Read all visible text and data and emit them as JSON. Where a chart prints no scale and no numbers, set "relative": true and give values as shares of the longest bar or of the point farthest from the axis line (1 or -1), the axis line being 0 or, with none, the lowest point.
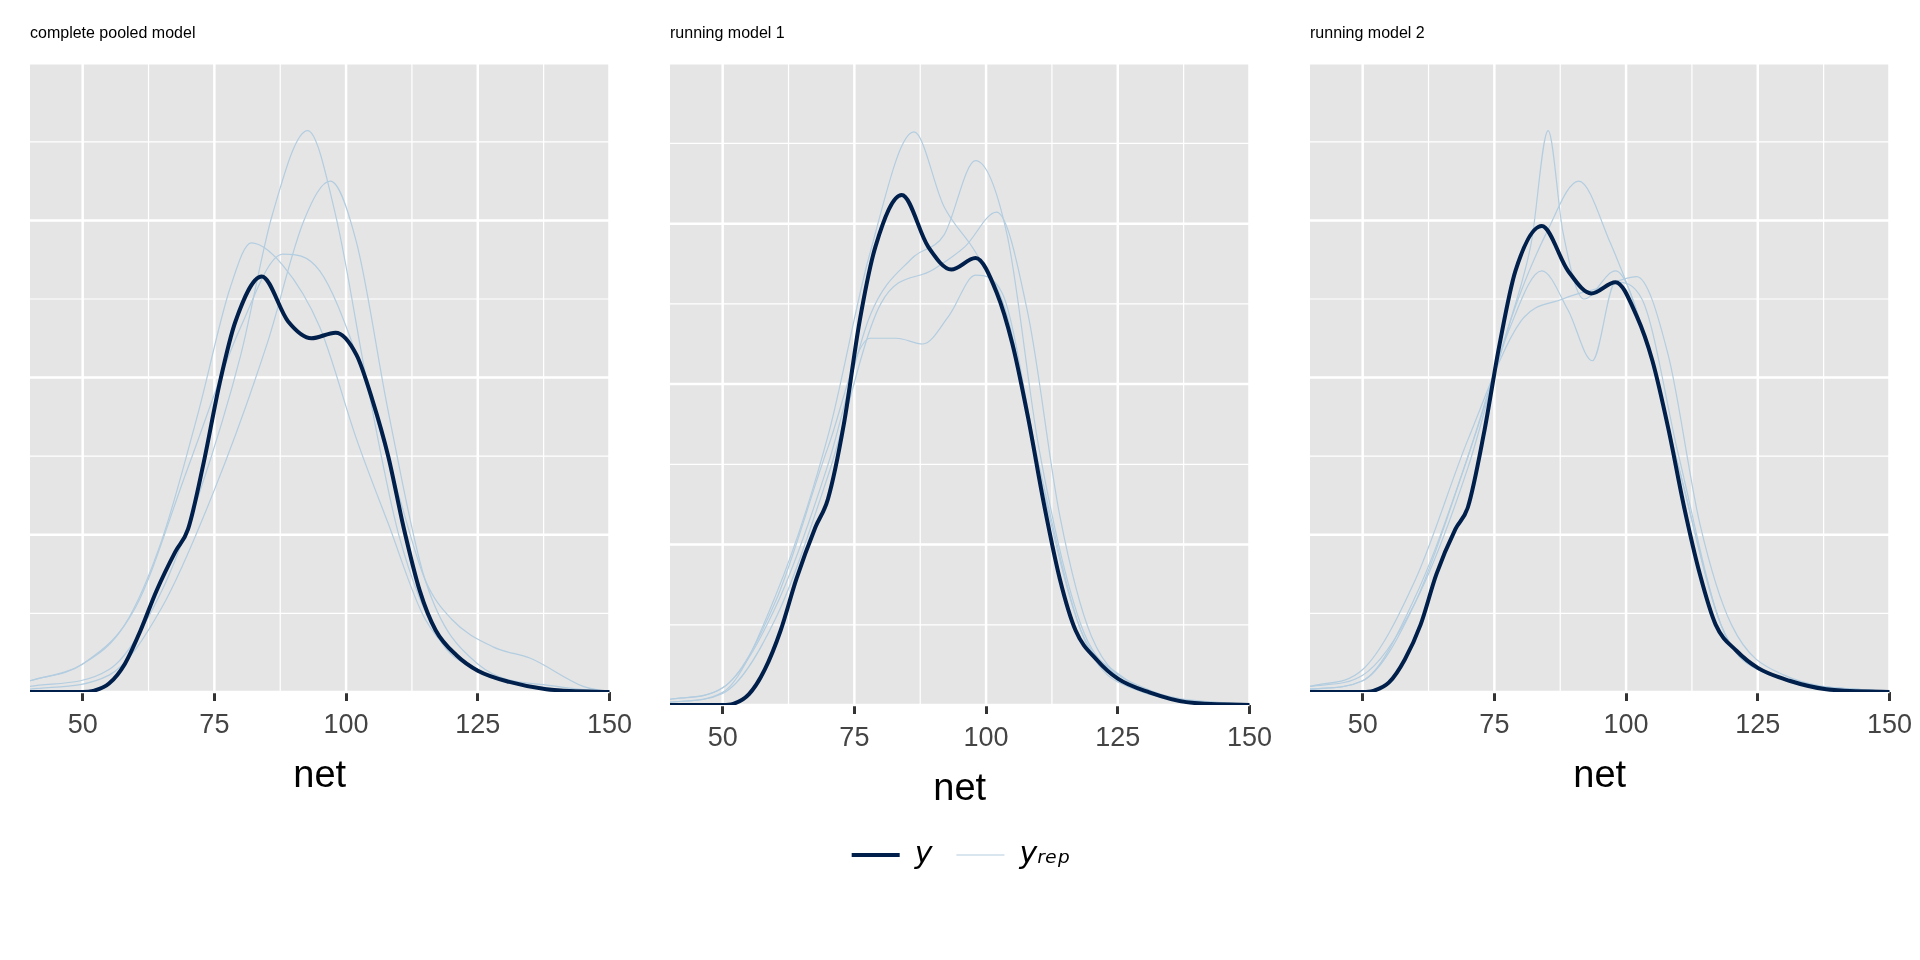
{
  "chart_data": [
    {
      "type": "line",
      "title": "complete pooled model",
      "xlabel": "net",
      "xlim": [
        40,
        150
      ],
      "xticks": [
        50,
        75,
        100,
        125,
        150
      ],
      "relative": true,
      "grid": true,
      "marker": "none",
      "line_style": "solid",
      "tick_labels": "x",
      "series": [
        {
          "color": "#011f4b",
          "x": [
            40,
            50,
            52,
            55,
            58,
            61,
            64,
            67.6,
            70,
            73,
            76,
            79,
            84,
            89,
            93.4,
            98,
            102,
            105,
            108,
            111,
            114,
            117,
            121,
            125,
            131,
            138,
            150
          ],
          "values": [
            0,
            0,
            0.002,
            0.015,
            0.05,
            0.11,
            0.18,
            0.25,
            0.29,
            0.41,
            0.55,
            0.66,
            0.74,
            0.66,
            0.63,
            0.64,
            0.6,
            0.52,
            0.42,
            0.29,
            0.18,
            0.11,
            0.065,
            0.038,
            0.018,
            0.005,
            0
          ]
        },
        {
          "color": "#b3cde0",
          "x": [
            40,
            55,
            65,
            72,
            80,
            86,
            92.7,
            98,
            104,
            110,
            118,
            125,
            135,
            150
          ],
          "values": [
            0.01,
            0.04,
            0.18,
            0.35,
            0.6,
            0.85,
            1,
            0.85,
            0.55,
            0.28,
            0.09,
            0.04,
            0.01,
            0
          ]
        },
        {
          "color": "#b3cde0",
          "x": [
            40,
            50,
            60,
            70,
            80,
            88,
            95,
            102,
            110,
            115,
            120,
            128,
            135,
            145,
            150
          ],
          "values": [
            0.02,
            0.05,
            0.15,
            0.4,
            0.65,
            0.78,
            0.75,
            0.6,
            0.35,
            0.2,
            0.13,
            0.08,
            0.06,
            0.01,
            0
          ]
        },
        {
          "color": "#b3cde0",
          "x": [
            40,
            50,
            58,
            65,
            72,
            78,
            82,
            88,
            95,
            102,
            108,
            115,
            125,
            140,
            150
          ],
          "values": [
            0.02,
            0.05,
            0.12,
            0.27,
            0.5,
            0.72,
            0.8,
            0.76,
            0.65,
            0.45,
            0.3,
            0.13,
            0.04,
            0.005,
            0
          ]
        },
        {
          "color": "#b3cde0",
          "x": [
            40,
            55,
            65,
            75,
            85,
            92,
            97,
            102,
            108,
            115,
            125,
            140,
            150
          ],
          "values": [
            0.005,
            0.03,
            0.15,
            0.36,
            0.62,
            0.84,
            0.91,
            0.8,
            0.5,
            0.2,
            0.05,
            0.01,
            0
          ]
        }
      ]
    },
    {
      "type": "line",
      "title": "running model 1",
      "xlabel": "net",
      "xlim": [
        40,
        150
      ],
      "xticks": [
        50,
        75,
        100,
        125,
        150
      ],
      "relative": true,
      "grid": true,
      "marker": "none",
      "line_style": "solid",
      "tick_labels": "x",
      "legend": "bottom",
      "series": [
        {
          "name": "y",
          "color": "#011f4b",
          "x": [
            40,
            50,
            52,
            55,
            58,
            61,
            64,
            67.6,
            70,
            73,
            76,
            79,
            84,
            89,
            93.4,
            98,
            102,
            105,
            108,
            111,
            114,
            117,
            121,
            125,
            131,
            138,
            150
          ],
          "values": [
            0,
            0,
            0.002,
            0.019,
            0.062,
            0.13,
            0.22,
            0.31,
            0.36,
            0.49,
            0.67,
            0.8,
            0.89,
            0.8,
            0.76,
            0.78,
            0.72,
            0.63,
            0.5,
            0.35,
            0.22,
            0.13,
            0.079,
            0.046,
            0.022,
            0.005,
            0
          ]
        },
        {
          "name": "yᵣₑₚ",
          "color": "#b3cde0",
          "x": [
            40,
            50,
            60,
            70,
            78,
            86.3,
            92,
            98,
            104,
            110,
            118,
            125,
            135,
            150
          ],
          "values": [
            0.005,
            0.022,
            0.19,
            0.47,
            0.79,
            1,
            0.87,
            0.79,
            0.68,
            0.41,
            0.13,
            0.055,
            0.011,
            0
          ]
        },
        {
          "color": "#b3cde0",
          "x": [
            40,
            50,
            60,
            70,
            78,
            86,
            92,
            98,
            104,
            110,
            118,
            125,
            135,
            150
          ],
          "values": [
            0.01,
            0.03,
            0.17,
            0.42,
            0.68,
            0.78,
            0.82,
            0.95,
            0.82,
            0.45,
            0.14,
            0.05,
            0.01,
            0
          ]
        },
        {
          "color": "#b3cde0",
          "x": [
            40,
            50,
            60,
            70,
            78,
            83,
            88,
            93,
            98,
            103,
            110,
            118,
            125,
            150
          ],
          "values": [
            0.01,
            0.03,
            0.18,
            0.45,
            0.64,
            0.64,
            0.63,
            0.68,
            0.75,
            0.72,
            0.42,
            0.13,
            0.04,
            0
          ]
        },
        {
          "color": "#b3cde0",
          "x": [
            40,
            50,
            60,
            70,
            80,
            90,
            96,
            102,
            108,
            114,
            120,
            130,
            150
          ],
          "values": [
            0.005,
            0.02,
            0.15,
            0.4,
            0.7,
            0.76,
            0.8,
            0.86,
            0.68,
            0.33,
            0.12,
            0.03,
            0
          ]
        }
      ]
    },
    {
      "type": "line",
      "title": "running model 2",
      "xlabel": "net",
      "xlim": [
        40,
        150
      ],
      "xticks": [
        50,
        75,
        100,
        125,
        150
      ],
      "relative": true,
      "grid": true,
      "marker": "none",
      "line_style": "solid",
      "tick_labels": "x",
      "series": [
        {
          "color": "#011f4b",
          "x": [
            40,
            50,
            52,
            55,
            58,
            61,
            64,
            67.6,
            70,
            73,
            76,
            79,
            84,
            89,
            93.4,
            98,
            102,
            105,
            108,
            111,
            114,
            117,
            121,
            125,
            131,
            138,
            150
          ],
          "values": [
            0,
            0,
            0.002,
            0.017,
            0.058,
            0.12,
            0.21,
            0.29,
            0.33,
            0.46,
            0.62,
            0.75,
            0.83,
            0.75,
            0.71,
            0.73,
            0.67,
            0.59,
            0.47,
            0.33,
            0.21,
            0.12,
            0.073,
            0.043,
            0.02,
            0.005,
            0
          ]
        },
        {
          "color": "#b3cde0",
          "x": [
            40,
            50,
            60,
            70,
            78,
            82,
            85.2,
            88,
            92,
            98,
            104,
            110,
            118,
            125,
            150
          ],
          "values": [
            0.005,
            0.02,
            0.17,
            0.42,
            0.66,
            0.8,
            1,
            0.82,
            0.7,
            0.75,
            0.62,
            0.4,
            0.12,
            0.04,
            0
          ]
        },
        {
          "color": "#b3cde0",
          "x": [
            40,
            50,
            60,
            70,
            78,
            84,
            89,
            93.6,
            98,
            103,
            110,
            118,
            125,
            150
          ],
          "values": [
            0.005,
            0.02,
            0.16,
            0.42,
            0.65,
            0.75,
            0.68,
            0.59,
            0.73,
            0.7,
            0.42,
            0.12,
            0.04,
            0
          ]
        },
        {
          "color": "#b3cde0",
          "x": [
            40,
            50,
            60,
            70,
            78,
            85,
            91,
            97,
            103,
            110,
            118,
            125,
            150
          ],
          "values": [
            0.01,
            0.03,
            0.16,
            0.4,
            0.66,
            0.82,
            0.91,
            0.8,
            0.65,
            0.4,
            0.12,
            0.04,
            0
          ]
        },
        {
          "color": "#b3cde0",
          "x": [
            40,
            50,
            60,
            70,
            80,
            88,
            95,
            102,
            108,
            114,
            120,
            130,
            150
          ],
          "values": [
            0.01,
            0.04,
            0.2,
            0.45,
            0.66,
            0.7,
            0.72,
            0.74,
            0.6,
            0.3,
            0.12,
            0.03,
            0
          ]
        }
      ]
    }
  ]
}
